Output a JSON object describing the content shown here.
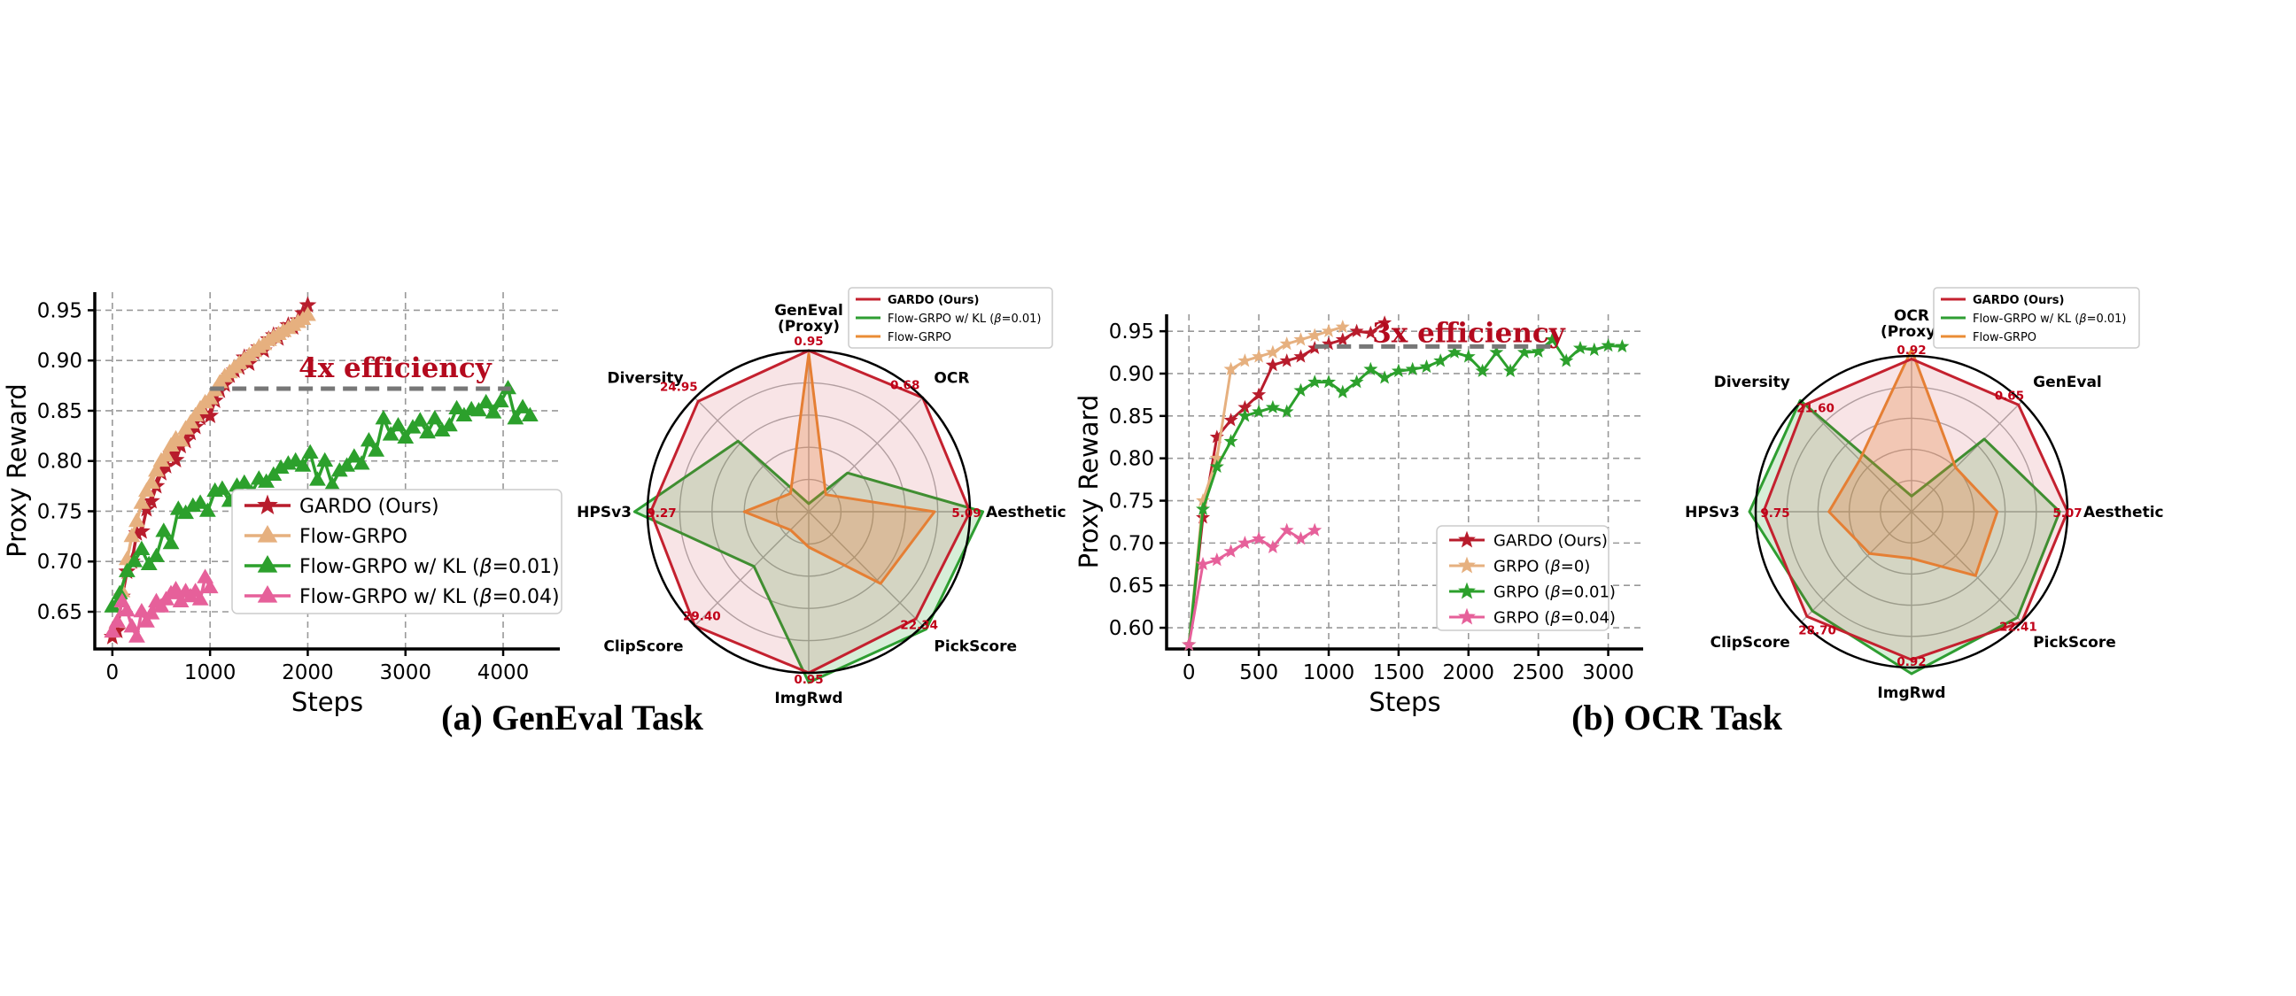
{
  "colors": {
    "gardo": "#b81c2c",
    "flow": "#e6b07f",
    "kl001": "#2ca02c",
    "kl004": "#e6609a",
    "radar_gardo": "#c4212f",
    "radar_kl": "#2e9e32",
    "radar_flow": "#ea8c35"
  },
  "captions": {
    "a": "(a) GenEval Task",
    "b": "(b) OCR Task"
  },
  "chart_data": [
    {
      "id": "geneval-line",
      "type": "line",
      "xlabel": "Steps",
      "ylabel": "Proxy Reward",
      "xlim": [
        -180,
        4580
      ],
      "ylim": [
        0.613,
        0.968
      ],
      "xticks": [
        0,
        1000,
        2000,
        3000,
        4000
      ],
      "yticks": [
        0.65,
        0.7,
        0.75,
        0.8,
        0.85,
        0.9,
        0.95
      ],
      "ytick_labels": [
        "0.65",
        "0.70",
        "0.75",
        "0.80",
        "0.85",
        "0.90",
        "0.95"
      ],
      "annotation": {
        "text": "4x efficiency",
        "x0": 1000,
        "x1": 4080,
        "y": 0.872
      },
      "legend": {
        "position": "lower-right"
      },
      "series": [
        {
          "name": "GARDO (Ours)",
          "color_key": "gardo",
          "marker": "star",
          "x": [
            0,
            50,
            100,
            150,
            200,
            250,
            300,
            350,
            400,
            450,
            500,
            550,
            600,
            650,
            700,
            750,
            800,
            850,
            900,
            950,
            1000,
            1050,
            1100,
            1150,
            1200,
            1250,
            1300,
            1350,
            1400,
            1450,
            1500,
            1550,
            1600,
            1650,
            1700,
            1750,
            1800,
            1850,
            1900,
            1950,
            2000
          ],
          "y": [
            0.625,
            0.631,
            0.665,
            0.69,
            0.7,
            0.728,
            0.73,
            0.752,
            0.76,
            0.775,
            0.788,
            0.795,
            0.807,
            0.801,
            0.815,
            0.82,
            0.828,
            0.834,
            0.843,
            0.847,
            0.845,
            0.86,
            0.87,
            0.876,
            0.885,
            0.89,
            0.893,
            0.903,
            0.897,
            0.908,
            0.913,
            0.91,
            0.921,
            0.925,
            0.922,
            0.93,
            0.935,
            0.933,
            0.94,
            0.947,
            0.955
          ]
        },
        {
          "name": "Flow-GRPO",
          "color_key": "flow",
          "marker": "triangle",
          "x": [
            0,
            50,
            100,
            150,
            200,
            250,
            300,
            350,
            400,
            450,
            500,
            550,
            600,
            650,
            700,
            750,
            800,
            850,
            900,
            950,
            1000,
            1050,
            1100,
            1150,
            1200,
            1250,
            1300,
            1350,
            1400,
            1450,
            1500,
            1550,
            1600,
            1650,
            1700,
            1750,
            1800,
            1850,
            1900,
            1950,
            2000
          ],
          "y": [
            0.63,
            0.64,
            0.67,
            0.702,
            0.725,
            0.74,
            0.758,
            0.77,
            0.778,
            0.79,
            0.8,
            0.805,
            0.815,
            0.822,
            0.82,
            0.832,
            0.838,
            0.845,
            0.852,
            0.858,
            0.862,
            0.87,
            0.878,
            0.884,
            0.888,
            0.893,
            0.897,
            0.901,
            0.905,
            0.909,
            0.913,
            0.916,
            0.92,
            0.923,
            0.926,
            0.929,
            0.932,
            0.935,
            0.938,
            0.941,
            0.945
          ]
        },
        {
          "name": "Flow-GRPO w/ KL (β=0.01)",
          "color_key": "kl001",
          "marker": "triangle",
          "x": [
            0,
            75,
            150,
            225,
            300,
            375,
            450,
            525,
            600,
            675,
            750,
            825,
            900,
            975,
            1050,
            1125,
            1200,
            1275,
            1350,
            1425,
            1500,
            1575,
            1650,
            1725,
            1800,
            1875,
            1950,
            2025,
            2100,
            2175,
            2250,
            2325,
            2400,
            2475,
            2550,
            2625,
            2700,
            2775,
            2850,
            2925,
            3000,
            3075,
            3150,
            3225,
            3300,
            3375,
            3450,
            3525,
            3600,
            3675,
            3750,
            3825,
            3900,
            3975,
            4050,
            4125,
            4200,
            4275
          ],
          "y": [
            0.655,
            0.668,
            0.69,
            0.7,
            0.712,
            0.697,
            0.705,
            0.73,
            0.718,
            0.752,
            0.748,
            0.755,
            0.758,
            0.75,
            0.77,
            0.772,
            0.76,
            0.775,
            0.778,
            0.768,
            0.782,
            0.779,
            0.786,
            0.793,
            0.797,
            0.8,
            0.795,
            0.808,
            0.781,
            0.8,
            0.776,
            0.79,
            0.795,
            0.804,
            0.797,
            0.82,
            0.81,
            0.842,
            0.826,
            0.835,
            0.823,
            0.833,
            0.84,
            0.828,
            0.842,
            0.83,
            0.835,
            0.852,
            0.845,
            0.851,
            0.85,
            0.858,
            0.848,
            0.859,
            0.872,
            0.842,
            0.853,
            0.845
          ]
        },
        {
          "name": "Flow-GRPO w/ KL (β=0.04)",
          "color_key": "kl004",
          "marker": "triangle",
          "x": [
            0,
            50,
            100,
            150,
            200,
            250,
            300,
            350,
            400,
            450,
            500,
            550,
            600,
            650,
            700,
            750,
            800,
            850,
            900,
            950,
            1000
          ],
          "y": [
            0.63,
            0.64,
            0.66,
            0.651,
            0.635,
            0.625,
            0.65,
            0.64,
            0.648,
            0.66,
            0.655,
            0.662,
            0.668,
            0.672,
            0.66,
            0.67,
            0.665,
            0.67,
            0.662,
            0.684,
            0.674
          ]
        }
      ]
    },
    {
      "id": "geneval-radar",
      "type": "radar",
      "axes": [
        "GenEval\n(Proxy)",
        "OCR",
        "Aesthetic",
        "PickScore",
        "ImgRwd",
        "ClipScore",
        "HPSv3",
        "Diversity"
      ],
      "max_labels": [
        "0.95",
        "0.68",
        "5.09",
        "22.34",
        "0.95",
        "29.40",
        "9.27",
        "24.95"
      ],
      "legend": {
        "position": "top-right"
      },
      "series": [
        {
          "name": "GARDO (Ours)",
          "color_key": "radar_gardo",
          "values": [
            1.0,
            1.0,
            1.0,
            0.94,
            1.0,
            1.0,
            0.98,
            0.97
          ]
        },
        {
          "name": "Flow-GRPO w/ KL (β=0.01)",
          "color_key": "radar_kl",
          "values": [
            0.05,
            0.34,
            1.08,
            1.03,
            1.06,
            0.48,
            1.08,
            0.62
          ]
        },
        {
          "name": "Flow-GRPO",
          "color_key": "radar_flow",
          "values": [
            0.98,
            0.15,
            0.78,
            0.63,
            0.22,
            0.16,
            0.4,
            0.16
          ]
        }
      ]
    },
    {
      "id": "ocr-line",
      "type": "line",
      "xlabel": "Steps",
      "ylabel": "Proxy Reward",
      "xlim": [
        -160,
        3250
      ],
      "ylim": [
        0.575,
        0.97
      ],
      "xticks": [
        0,
        500,
        1000,
        1500,
        2000,
        2500,
        3000
      ],
      "yticks": [
        0.6,
        0.65,
        0.7,
        0.75,
        0.8,
        0.85,
        0.9,
        0.95
      ],
      "ytick_labels": [
        "0.60",
        "0.65",
        "0.70",
        "0.75",
        "0.80",
        "0.85",
        "0.90",
        "0.95"
      ],
      "annotation": {
        "text": "3x efficiency",
        "x0": 900,
        "x1": 2620,
        "y": 0.932
      },
      "legend": {
        "position": "lower-right"
      },
      "series": [
        {
          "name": "GARDO (Ours)",
          "color_key": "gardo",
          "marker": "star",
          "x": [
            0,
            100,
            200,
            300,
            400,
            500,
            600,
            700,
            800,
            900,
            1000,
            1100,
            1200,
            1300,
            1400
          ],
          "y": [
            0.58,
            0.73,
            0.825,
            0.845,
            0.86,
            0.875,
            0.91,
            0.915,
            0.92,
            0.93,
            0.935,
            0.94,
            0.95,
            0.948,
            0.96
          ]
        },
        {
          "name": "GRPO (β=0)",
          "color_key": "flow",
          "marker": "star",
          "x": [
            0,
            100,
            200,
            300,
            400,
            500,
            600,
            700,
            800,
            900,
            1000,
            1100
          ],
          "y": [
            0.58,
            0.75,
            0.8,
            0.905,
            0.915,
            0.92,
            0.925,
            0.935,
            0.94,
            0.945,
            0.95,
            0.955
          ]
        },
        {
          "name": "GRPO (β=0.01)",
          "color_key": "kl001",
          "marker": "star",
          "x": [
            0,
            100,
            200,
            300,
            400,
            500,
            600,
            700,
            800,
            900,
            1000,
            1100,
            1200,
            1300,
            1400,
            1500,
            1600,
            1700,
            1800,
            1900,
            2000,
            2100,
            2200,
            2300,
            2400,
            2500,
            2600,
            2700,
            2800,
            2900,
            3000,
            3100
          ],
          "y": [
            0.58,
            0.74,
            0.79,
            0.82,
            0.85,
            0.855,
            0.86,
            0.855,
            0.88,
            0.89,
            0.89,
            0.878,
            0.89,
            0.905,
            0.895,
            0.903,
            0.905,
            0.908,
            0.915,
            0.925,
            0.92,
            0.903,
            0.925,
            0.903,
            0.925,
            0.926,
            0.94,
            0.915,
            0.93,
            0.928,
            0.933,
            0.932
          ]
        },
        {
          "name": "GRPO (β=0.04)",
          "color_key": "kl004",
          "marker": "star",
          "x": [
            0,
            100,
            200,
            300,
            400,
            500,
            600,
            700,
            800,
            900
          ],
          "y": [
            0.58,
            0.675,
            0.68,
            0.69,
            0.7,
            0.705,
            0.695,
            0.715,
            0.705,
            0.715
          ]
        }
      ]
    },
    {
      "id": "ocr-radar",
      "type": "radar",
      "axes": [
        "OCR\n(Proxy)",
        "GenEval",
        "Aesthetic",
        "PickScore",
        "ImgRwd",
        "ClipScore",
        "HPSv3",
        "Diversity"
      ],
      "max_labels": [
        "0.92",
        "0.65",
        "5.07",
        "22.41",
        "0.92",
        "28.70",
        "9.75",
        "21.60"
      ],
      "legend": {
        "position": "top-right"
      },
      "series": [
        {
          "name": "GARDO (Ours)",
          "color_key": "radar_gardo",
          "values": [
            0.98,
            0.97,
            1.0,
            1.0,
            0.95,
            0.95,
            0.95,
            0.97
          ]
        },
        {
          "name": "Flow-GRPO w/ KL (β=0.01)",
          "color_key": "radar_kl",
          "values": [
            0.1,
            0.66,
            0.95,
            0.96,
            1.04,
            0.9,
            1.04,
            1.01
          ]
        },
        {
          "name": "Flow-GRPO",
          "color_key": "radar_flow",
          "values": [
            1.04,
            0.4,
            0.55,
            0.58,
            0.3,
            0.38,
            0.53,
            0.47
          ]
        }
      ]
    }
  ]
}
